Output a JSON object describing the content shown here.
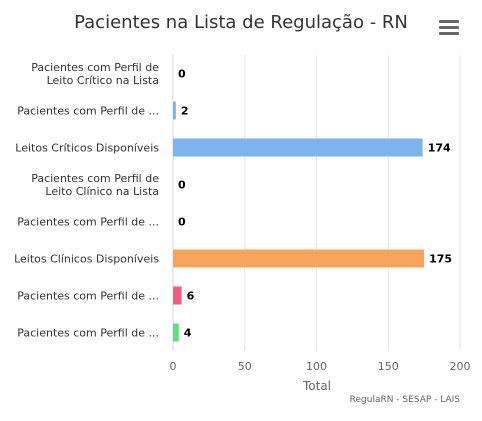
{
  "title": "Pacientes na Lista de Regulação - RN",
  "menu_icon": "hamburger-menu-icon",
  "credits": "RegulaRN - SESAP - LAIS",
  "chart_data": {
    "type": "bar",
    "orientation": "horizontal",
    "title": "Pacientes na Lista de Regulação - RN",
    "xlabel": "Total",
    "ylabel": "",
    "xlim": [
      0,
      200
    ],
    "ticks": [
      0,
      50,
      100,
      150,
      200
    ],
    "grid": true,
    "categories": [
      [
        "Pacientes com Perfil de",
        "Leito Crítico na Lista"
      ],
      [
        "Pacientes com Perfil de ..."
      ],
      [
        "Leitos Críticos Disponíveis"
      ],
      [
        "Pacientes com Perfil de",
        "Leito Clínico na Lista"
      ],
      [
        "Pacientes com Perfil de ..."
      ],
      [
        "Leitos Clínicos Disponíveis"
      ],
      [
        "Pacientes com Perfil de ..."
      ],
      [
        "Pacientes com Perfil de ..."
      ]
    ],
    "values": [
      0,
      2,
      174,
      0,
      0,
      175,
      6,
      4
    ],
    "colors": [
      "#7cb5ec",
      "#7cb5ec",
      "#7cb5ec",
      "#f7a35c",
      "#f7a35c",
      "#f7a35c",
      "#f15c80",
      "#5ee07a"
    ]
  }
}
